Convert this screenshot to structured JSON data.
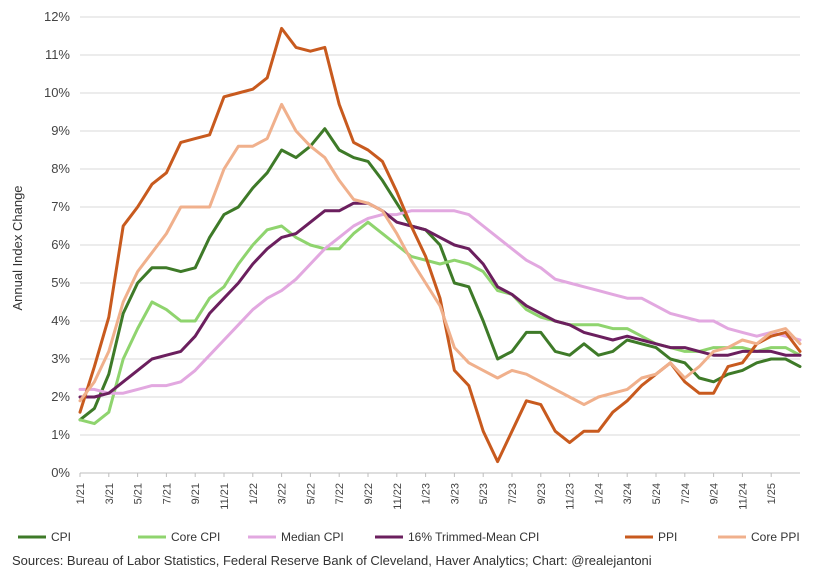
{
  "chart_data": {
    "type": "line",
    "title": "",
    "ylabel": "Annual Index Change",
    "xlabel": "",
    "ylim": [
      0,
      12
    ],
    "y_ticks": [
      "0%",
      "1%",
      "2%",
      "3%",
      "4%",
      "5%",
      "6%",
      "7%",
      "8%",
      "9%",
      "10%",
      "11%",
      "12%"
    ],
    "x_tick_labels": [
      "1/21",
      "3/21",
      "5/21",
      "7/21",
      "9/21",
      "11/21",
      "1/22",
      "3/22",
      "5/22",
      "7/22",
      "9/22",
      "11/22",
      "1/23",
      "3/23",
      "5/23",
      "7/23",
      "9/23",
      "11/23",
      "1/24",
      "3/24",
      "5/24",
      "7/24",
      "9/24",
      "11/24",
      "1/25"
    ],
    "x_start": "1/21",
    "x_end": "3/25",
    "months": 51,
    "legend_position": "bottom",
    "grid": "horizontal",
    "series": [
      {
        "name": "CPI",
        "color": "#3e7a28",
        "values": [
          1.4,
          1.7,
          2.6,
          4.2,
          5.0,
          5.4,
          5.4,
          5.3,
          5.4,
          6.2,
          6.8,
          7.0,
          7.5,
          7.9,
          8.5,
          8.3,
          8.6,
          9.06,
          8.5,
          8.3,
          8.2,
          7.7,
          7.1,
          6.5,
          6.4,
          6.0,
          5.0,
          4.9,
          4.0,
          3.0,
          3.2,
          3.7,
          3.7,
          3.2,
          3.1,
          3.4,
          3.1,
          3.2,
          3.5,
          3.4,
          3.3,
          3.0,
          2.9,
          2.5,
          2.4,
          2.6,
          2.7,
          2.9,
          3.0,
          3.0,
          2.8
        ]
      },
      {
        "name": "Core CPI",
        "color": "#8fd46e",
        "values": [
          1.4,
          1.3,
          1.6,
          3.0,
          3.8,
          4.5,
          4.3,
          4.0,
          4.0,
          4.6,
          4.9,
          5.5,
          6.0,
          6.4,
          6.5,
          6.2,
          6.0,
          5.9,
          5.9,
          6.3,
          6.6,
          6.3,
          6.0,
          5.7,
          5.6,
          5.5,
          5.6,
          5.5,
          5.3,
          4.8,
          4.7,
          4.3,
          4.1,
          4.0,
          3.9,
          3.9,
          3.9,
          3.8,
          3.8,
          3.6,
          3.4,
          3.3,
          3.2,
          3.2,
          3.3,
          3.3,
          3.3,
          3.2,
          3.3,
          3.3,
          3.1
        ]
      },
      {
        "name": "Median CPI",
        "color": "#e2a8e0",
        "values": [
          2.2,
          2.2,
          2.1,
          2.1,
          2.2,
          2.3,
          2.3,
          2.4,
          2.7,
          3.1,
          3.5,
          3.9,
          4.3,
          4.6,
          4.8,
          5.1,
          5.5,
          5.9,
          6.2,
          6.5,
          6.7,
          6.8,
          6.8,
          6.9,
          6.9,
          6.9,
          6.9,
          6.8,
          6.5,
          6.2,
          5.9,
          5.6,
          5.4,
          5.1,
          5.0,
          4.9,
          4.8,
          4.7,
          4.6,
          4.6,
          4.4,
          4.2,
          4.1,
          4.0,
          4.0,
          3.8,
          3.7,
          3.6,
          3.7,
          3.6,
          3.5
        ]
      },
      {
        "name": "16% Trimmed-Mean CPI",
        "color": "#6b1f5e",
        "values": [
          2.0,
          2.0,
          2.1,
          2.4,
          2.7,
          3.0,
          3.1,
          3.2,
          3.6,
          4.2,
          4.6,
          5.0,
          5.5,
          5.9,
          6.2,
          6.3,
          6.6,
          6.9,
          6.9,
          7.1,
          7.1,
          6.9,
          6.6,
          6.5,
          6.4,
          6.2,
          6.0,
          5.9,
          5.5,
          4.9,
          4.7,
          4.4,
          4.2,
          4.0,
          3.9,
          3.7,
          3.6,
          3.5,
          3.6,
          3.5,
          3.4,
          3.3,
          3.3,
          3.2,
          3.1,
          3.1,
          3.2,
          3.2,
          3.2,
          3.1,
          3.1
        ]
      },
      {
        "name": "PPI",
        "color": "#c85a1e",
        "values": [
          1.6,
          2.8,
          4.1,
          6.5,
          7.0,
          7.6,
          7.9,
          8.7,
          8.8,
          8.9,
          9.9,
          10.0,
          10.1,
          10.4,
          11.7,
          11.2,
          11.1,
          11.2,
          9.7,
          8.7,
          8.5,
          8.2,
          7.4,
          6.5,
          5.7,
          4.6,
          2.7,
          2.3,
          1.1,
          0.3,
          1.1,
          1.9,
          1.8,
          1.1,
          0.8,
          1.1,
          1.1,
          1.6,
          1.9,
          2.3,
          2.6,
          2.9,
          2.4,
          2.1,
          2.1,
          2.8,
          2.9,
          3.4,
          3.6,
          3.7,
          3.2
        ]
      },
      {
        "name": "Core PPI",
        "color": "#f0b08c",
        "values": [
          1.9,
          2.4,
          3.2,
          4.5,
          5.3,
          5.8,
          6.3,
          7.0,
          7.0,
          7.0,
          8.0,
          8.6,
          8.6,
          8.8,
          9.7,
          9.0,
          8.6,
          8.3,
          7.7,
          7.2,
          7.1,
          6.9,
          6.3,
          5.6,
          5.0,
          4.4,
          3.3,
          2.9,
          2.7,
          2.5,
          2.7,
          2.6,
          2.4,
          2.2,
          2.0,
          1.8,
          2.0,
          2.1,
          2.2,
          2.5,
          2.6,
          2.9,
          2.5,
          2.8,
          3.2,
          3.3,
          3.5,
          3.4,
          3.7,
          3.8,
          3.4
        ]
      }
    ]
  },
  "source_text": "Sources: Bureau of Labor Statistics, Federal Reserve Bank of Cleveland, Haver Analytics; Chart: @realejantoni"
}
